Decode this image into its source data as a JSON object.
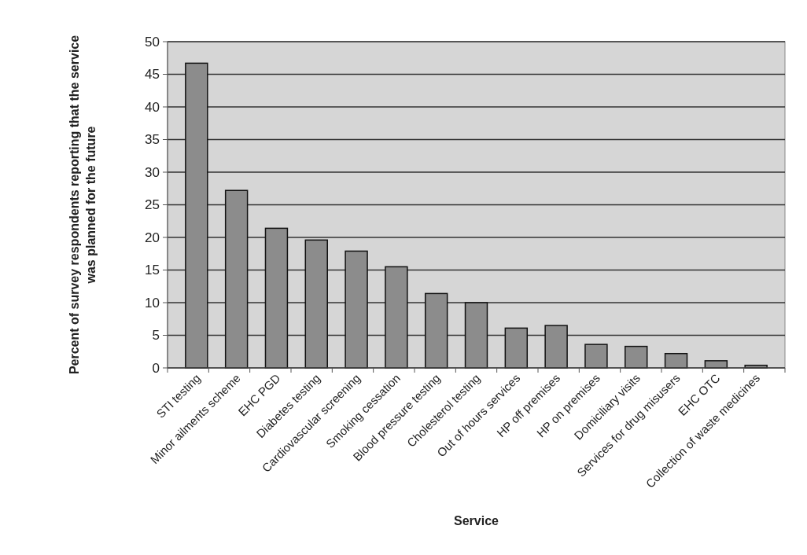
{
  "chart_data": {
    "type": "bar",
    "xlabel": "Service",
    "ylabel": "Percent of survey respondents reporting that the service was planned for the future",
    "categories": [
      "STI testing",
      "Minor ailments scheme",
      "EHC PGD",
      "Diabetes testing",
      "Cardiovascular screening",
      "Smoking cessation",
      "Blood pressure testing",
      "Cholesterol testing",
      "Out of hours services",
      "HP off premises",
      "HP on premises",
      "Domiciliary visits",
      "Services for drug misusers",
      "EHC OTC",
      "Collection of waste medicines"
    ],
    "values": [
      46.7,
      27.2,
      21.4,
      19.6,
      17.9,
      15.5,
      11.4,
      10,
      6.1,
      6.5,
      3.6,
      3.3,
      2.2,
      1.1,
      0.4
    ],
    "color": "#8c8c8c",
    "ylim": [
      0,
      50
    ],
    "yticks": [
      0,
      5,
      10,
      15,
      20,
      25,
      30,
      35,
      40,
      45,
      50
    ],
    "grid": "y"
  }
}
